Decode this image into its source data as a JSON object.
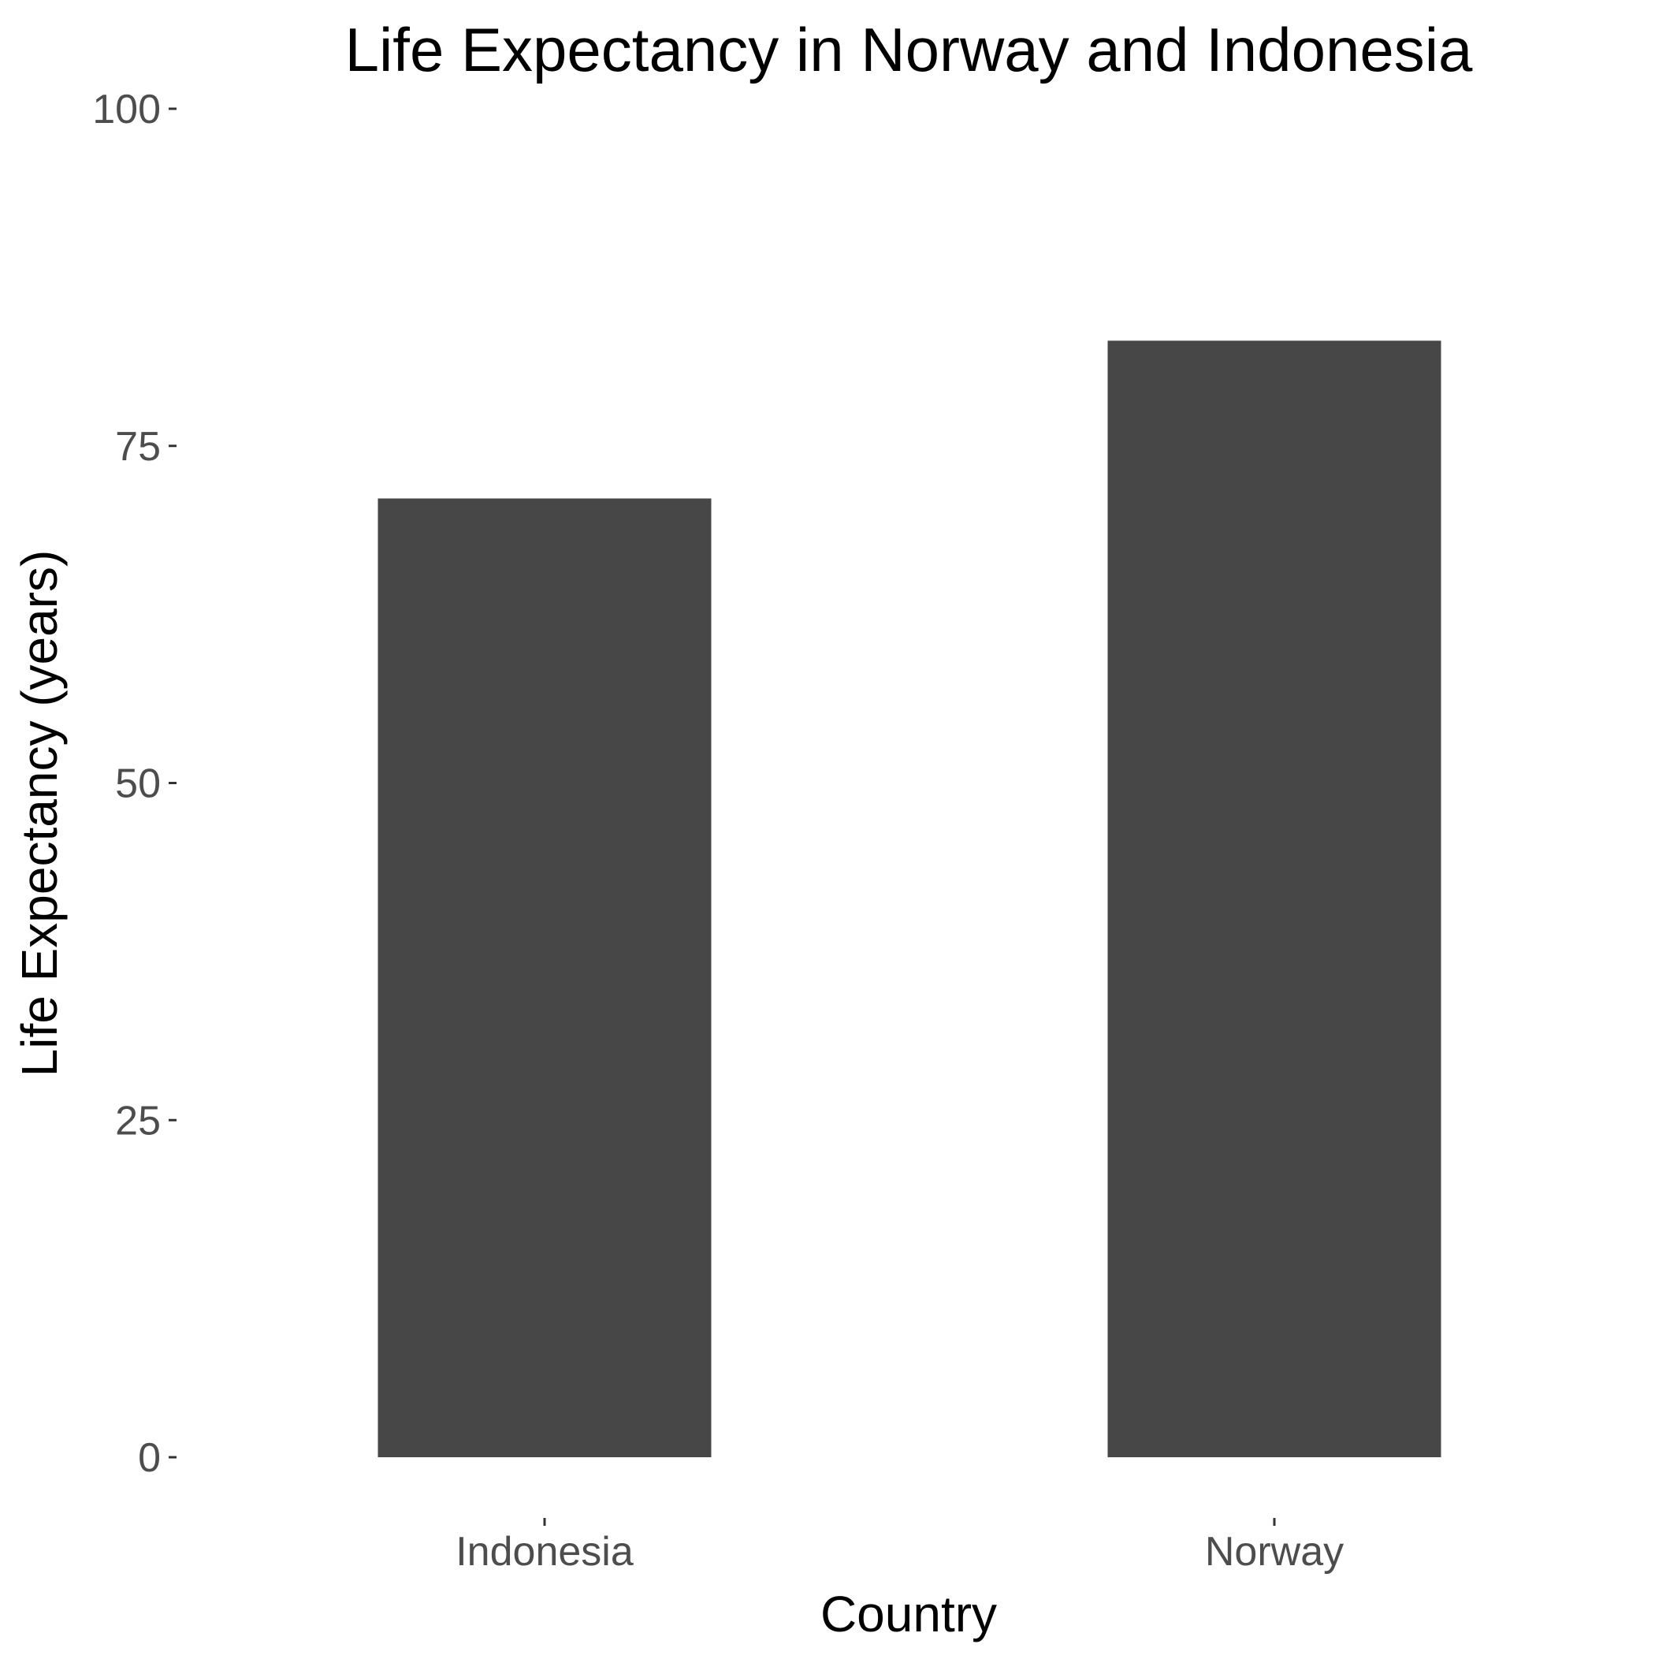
{
  "chart_data": {
    "type": "bar",
    "title": "Life Expectancy in Norway and Indonesia",
    "xlabel": "Country",
    "ylabel": "Life Expectancy (years)",
    "categories": [
      "Indonesia",
      "Norway"
    ],
    "values": [
      71.1,
      82.8
    ],
    "ylim": [
      0,
      100
    ],
    "yticks": [
      0,
      25,
      50,
      75,
      100
    ],
    "grid": false,
    "legend": "none",
    "bar_color": "#474747",
    "background": "#ffffff"
  }
}
